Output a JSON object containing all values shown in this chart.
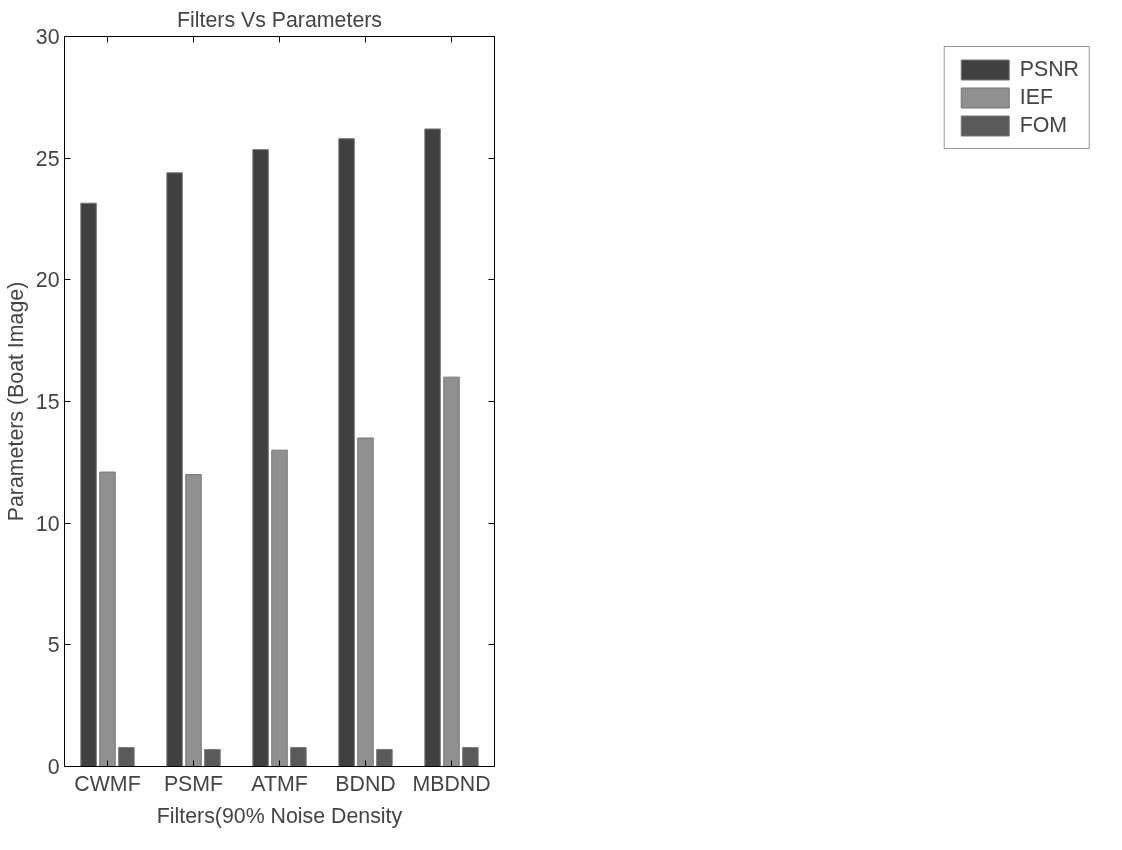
{
  "chart_data": {
    "type": "bar",
    "title": "Filters Vs Parameters",
    "xlabel": "Filters(90% Noise Density",
    "ylabel": "Parameters (Boat Image)",
    "categories": [
      "CWMF",
      "PSMF",
      "ATMF",
      "BDND",
      "MBDND"
    ],
    "series": [
      {
        "name": "PSNR",
        "color": "#404040",
        "values": [
          23.15,
          24.4,
          25.35,
          25.8,
          26.2
        ]
      },
      {
        "name": "IEF",
        "color": "#909090",
        "values": [
          12.1,
          12.0,
          13.0,
          13.5,
          16.0
        ]
      },
      {
        "name": "FOM",
        "color": "#5a5a5a",
        "values": [
          0.78,
          0.7,
          0.78,
          0.7,
          0.78
        ]
      }
    ],
    "ylim": [
      0,
      30
    ],
    "yticks": [
      0,
      5,
      10,
      15,
      20,
      25,
      30
    ],
    "grid": false,
    "legend": "right"
  }
}
